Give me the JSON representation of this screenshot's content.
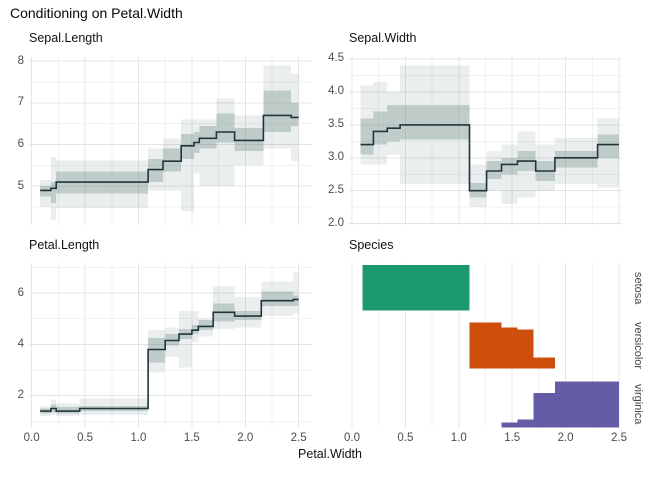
{
  "title": "Conditioning on Petal.Width",
  "x_axis_title": "Petal.Width",
  "x_axis": {
    "ticks": [
      {
        "v": 0.0,
        "label": "0.0"
      },
      {
        "v": 0.5,
        "label": "0.5"
      },
      {
        "v": 1.0,
        "label": "1.0"
      },
      {
        "v": 1.5,
        "label": "1.5"
      },
      {
        "v": 2.0,
        "label": "2.0"
      },
      {
        "v": 2.5,
        "label": "2.5"
      }
    ],
    "minor": [
      0.25,
      0.75,
      1.25,
      1.75,
      2.25
    ]
  },
  "colors": {
    "median_line": "#1f3639",
    "band_outer": "rgba(96,125,120,0.13)",
    "band_inner": "rgba(96,125,120,0.30)",
    "grid_major": "#e4e4e4",
    "grid_minor": "#f2f2f2",
    "tick_text": "#4d4d4d",
    "setosa": "#1d9970",
    "versicolor": "#ce4f0d",
    "virginica": "#645ca6"
  },
  "segments_format": "x0, x1, median, inner_lo, inner_hi, outer_lo, outer_hi",
  "chart_data": [
    {
      "type": "step-band",
      "title": "Sepal.Length",
      "xlabel": "Petal.Width",
      "xlim": [
        -0.025,
        2.625
      ],
      "ylim": [
        4.07,
        8.1
      ],
      "yticks": [
        {
          "v": 5,
          "label": "5"
        },
        {
          "v": 6,
          "label": "6"
        },
        {
          "v": 7,
          "label": "7"
        },
        {
          "v": 8,
          "label": "8"
        }
      ],
      "yminor": [
        4.5,
        5.5,
        6.5,
        7.5
      ],
      "segments": [
        [
          0.08,
          0.18,
          4.9,
          4.75,
          5.0,
          4.5,
          5.15
        ],
        [
          0.18,
          0.23,
          4.95,
          4.6,
          5.1,
          4.2,
          5.7
        ],
        [
          0.23,
          1.09,
          5.1,
          4.82,
          5.35,
          4.48,
          5.62
        ],
        [
          1.09,
          1.23,
          5.4,
          5.1,
          5.65,
          4.9,
          5.9
        ],
        [
          1.23,
          1.4,
          5.6,
          5.35,
          5.9,
          4.9,
          6.15
        ],
        [
          1.4,
          1.52,
          5.97,
          5.65,
          6.25,
          4.4,
          6.6
        ],
        [
          1.52,
          1.57,
          6.05,
          5.8,
          6.3,
          5.3,
          6.6
        ],
        [
          1.57,
          1.73,
          6.15,
          5.9,
          6.45,
          5.0,
          6.6
        ],
        [
          1.73,
          1.9,
          6.3,
          6.05,
          6.75,
          5.0,
          7.1
        ],
        [
          1.9,
          2.17,
          6.1,
          5.85,
          6.4,
          5.5,
          6.7
        ],
        [
          2.17,
          2.43,
          6.7,
          6.3,
          7.3,
          5.9,
          7.9
        ],
        [
          2.43,
          2.5,
          6.65,
          6.45,
          7.0,
          5.6,
          7.7
        ]
      ]
    },
    {
      "type": "step-band",
      "title": "Sepal.Width",
      "xlabel": "Petal.Width",
      "xlim": [
        -0.028,
        2.528
      ],
      "ylim": [
        1.98,
        4.53
      ],
      "yticks": [
        {
          "v": 2.0,
          "label": "2.0"
        },
        {
          "v": 2.5,
          "label": "2.5"
        },
        {
          "v": 3.0,
          "label": "3.0"
        },
        {
          "v": 3.5,
          "label": "3.5"
        },
        {
          "v": 4.0,
          "label": "4.0"
        },
        {
          "v": 4.5,
          "label": "4.5"
        }
      ],
      "yminor": [
        2.25,
        2.75,
        3.25,
        3.75,
        4.25
      ],
      "segments": [
        [
          0.08,
          0.2,
          3.2,
          3.05,
          3.6,
          2.9,
          4.1
        ],
        [
          0.2,
          0.33,
          3.4,
          3.2,
          3.7,
          2.9,
          4.15
        ],
        [
          0.33,
          0.45,
          3.45,
          3.25,
          3.8,
          3.05,
          4.0
        ],
        [
          0.45,
          1.1,
          3.5,
          3.28,
          3.8,
          2.6,
          4.4
        ],
        [
          1.1,
          1.26,
          2.5,
          2.4,
          2.62,
          2.25,
          2.9
        ],
        [
          1.26,
          1.4,
          2.8,
          2.68,
          2.95,
          2.5,
          3.1
        ],
        [
          1.4,
          1.55,
          2.9,
          2.75,
          3.0,
          2.3,
          3.2
        ],
        [
          1.55,
          1.72,
          2.95,
          2.8,
          3.1,
          2.4,
          3.4
        ],
        [
          1.72,
          1.9,
          2.8,
          2.65,
          2.95,
          2.5,
          3.2
        ],
        [
          1.9,
          2.3,
          3.0,
          2.85,
          3.1,
          2.6,
          3.3
        ],
        [
          2.3,
          2.5,
          3.2,
          3.0,
          3.35,
          2.55,
          3.6
        ]
      ]
    },
    {
      "type": "step-band",
      "title": "Petal.Length",
      "xlabel": "Petal.Width",
      "xlim": [
        -0.025,
        2.625
      ],
      "ylim": [
        0.78,
        7.17
      ],
      "yticks": [
        {
          "v": 2,
          "label": "2"
        },
        {
          "v": 4,
          "label": "4"
        },
        {
          "v": 6,
          "label": "6"
        }
      ],
      "yminor": [
        1,
        3,
        5,
        7
      ],
      "segments": [
        [
          0.08,
          0.18,
          1.4,
          1.3,
          1.5,
          1.2,
          1.6
        ],
        [
          0.18,
          0.23,
          1.5,
          1.35,
          1.65,
          1.25,
          1.85
        ],
        [
          0.23,
          0.45,
          1.4,
          1.3,
          1.55,
          1.2,
          1.7
        ],
        [
          0.45,
          1.09,
          1.5,
          1.4,
          1.6,
          1.25,
          1.9
        ],
        [
          1.09,
          1.25,
          3.8,
          3.3,
          4.25,
          2.9,
          4.55
        ],
        [
          1.25,
          1.38,
          4.15,
          3.95,
          4.4,
          3.5,
          4.65
        ],
        [
          1.38,
          1.5,
          4.4,
          4.2,
          4.6,
          3.1,
          5.3
        ],
        [
          1.5,
          1.56,
          4.55,
          4.4,
          4.75,
          4.1,
          5.3
        ],
        [
          1.56,
          1.7,
          4.7,
          4.55,
          4.95,
          4.3,
          5.0
        ],
        [
          1.7,
          1.9,
          5.25,
          4.9,
          5.6,
          4.6,
          6.25
        ],
        [
          1.9,
          2.15,
          5.1,
          4.95,
          5.3,
          4.65,
          5.85
        ],
        [
          2.15,
          2.45,
          5.7,
          5.5,
          6.05,
          5.1,
          6.45
        ],
        [
          2.45,
          2.5,
          5.75,
          5.5,
          5.9,
          5.2,
          6.8
        ]
      ]
    },
    {
      "type": "facet-bars",
      "title": "Species",
      "xlabel": "Petal.Width",
      "xlim": [
        -0.028,
        2.528
      ],
      "bars_format": "x0, x1, height_fraction",
      "facets": [
        {
          "label": "setosa",
          "color": "#1d9970",
          "bars": [
            [
              0.1,
              1.1,
              1.0
            ]
          ]
        },
        {
          "label": "versicolor",
          "color": "#ce4f0d",
          "bars": [
            [
              1.1,
              1.4,
              1.0
            ],
            [
              1.4,
              1.55,
              0.9
            ],
            [
              1.55,
              1.7,
              0.85
            ],
            [
              1.7,
              1.9,
              0.24
            ]
          ]
        },
        {
          "label": "virginica",
          "color": "#645ca6",
          "bars": [
            [
              1.4,
              1.55,
              0.11
            ],
            [
              1.55,
              1.7,
              0.17
            ],
            [
              1.7,
              1.9,
              0.75
            ],
            [
              1.9,
              2.5,
              1.0
            ]
          ]
        }
      ]
    }
  ]
}
